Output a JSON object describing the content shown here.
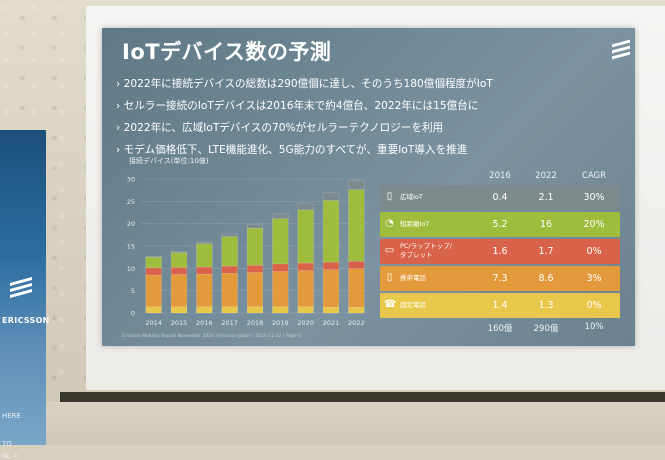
{
  "slide": {
    "title": "IoTデバイス数の予測",
    "bullets": [
      "2022年に接続デバイスの総数は290億個に達し、そのうち180億個程度がIoT",
      "セルラー接続のIoTデバイスは2016年末で約4億台、2022年には15億台に",
      "2022年に、広域IoTデバイスの70%がセルラーテクノロジーを利用",
      "モデム価格低下、LTE機能進化、5G能力のすべてが、重要IoT導入を推進"
    ],
    "bullet_marker": "›",
    "logo_icon": "ericsson-logo-icon",
    "footnote": "Ericsson Mobility Report November 2016 | Ericsson Japan | 2016-11-22 | Page 6"
  },
  "chart_data": {
    "type": "bar",
    "stacked": true,
    "title": "",
    "ylabel": "接続デバイス(単位:10億)",
    "xlabel": "",
    "categories": [
      "2014",
      "2015",
      "2016",
      "2017",
      "2018",
      "2019",
      "2020",
      "2021",
      "2022"
    ],
    "yticks": [
      0,
      5,
      10,
      15,
      20,
      25,
      30
    ],
    "ylim": [
      0,
      30
    ],
    "series": [
      {
        "name": "固定電話",
        "color": "#e8c84a",
        "values": [
          1.4,
          1.4,
          1.4,
          1.4,
          1.4,
          1.4,
          1.4,
          1.3,
          1.3
        ]
      },
      {
        "name": "携帯電話",
        "color": "#e39a3a",
        "values": [
          7.1,
          7.2,
          7.3,
          7.5,
          7.7,
          7.9,
          8.1,
          8.4,
          8.6
        ]
      },
      {
        "name": "PC/ラップトップ/タブレット",
        "color": "#d9634a",
        "values": [
          1.6,
          1.6,
          1.6,
          1.6,
          1.6,
          1.7,
          1.7,
          1.7,
          1.7
        ]
      },
      {
        "name": "短距離IoT",
        "color": "#9fbc3c",
        "values": [
          2.4,
          3.3,
          5.2,
          6.6,
          8.3,
          10.1,
          11.9,
          13.8,
          16
        ]
      },
      {
        "name": "広域IoT",
        "color": "#7d8a8c",
        "values": [
          0.2,
          0.3,
          0.4,
          0.6,
          0.8,
          1.1,
          1.4,
          1.7,
          2.1
        ]
      }
    ]
  },
  "table": {
    "headers": [
      "2016",
      "2022",
      "CAGR"
    ],
    "rows": [
      {
        "label": "広域IoT",
        "icon": "wide-area-iot-icon",
        "glyph": "▯",
        "v2016": "0.4",
        "v2022": "2.1",
        "cagr": "30%",
        "color": "#7d8a8c"
      },
      {
        "label": "短距離IoT",
        "icon": "short-range-iot-icon",
        "glyph": "◔",
        "v2016": "5.2",
        "v2022": "16",
        "cagr": "20%",
        "color": "#9fbc3c"
      },
      {
        "label": "PC/ラップトップ/\nタブレット",
        "label1": "PC/ラップトップ/",
        "label2": "タブレット",
        "icon": "laptop-icon",
        "glyph": "▭",
        "v2016": "1.6",
        "v2022": "1.7",
        "cagr": "0%",
        "color": "#d9634a"
      },
      {
        "label": "携帯電話",
        "icon": "mobile-phone-icon",
        "glyph": "▯",
        "v2016": "7.3",
        "v2022": "8.6",
        "cagr": "3%",
        "color": "#e39a3a"
      },
      {
        "label": "固定電話",
        "icon": "fixed-phone-icon",
        "glyph": "☎",
        "v2016": "1.4",
        "v2022": "1.3",
        "cagr": "0%",
        "color": "#e8c84a"
      }
    ],
    "totals": {
      "v2016": "160億",
      "v2022": "290億",
      "cagr": "10%"
    }
  },
  "banner": {
    "brand": "ERICSSON",
    "line1": "HERE",
    "line2": "TO",
    "line3": "AL ∞"
  }
}
